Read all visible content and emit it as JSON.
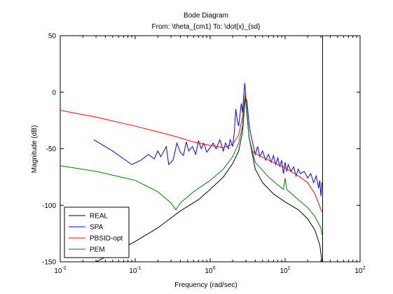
{
  "chart_data": {
    "type": "line",
    "title": "Bode Diagram",
    "subtitle": "From: \\theta_{cm1}  To: \\dot{x}_{sd}",
    "xlabel": "Frequency  (rad/sec)",
    "ylabel": "Magnitude (dB)",
    "xscale": "log",
    "xlim": [
      0.01,
      100
    ],
    "ylim": [
      -150,
      50
    ],
    "x_ticks": [
      {
        "base": "10",
        "exp": "-2",
        "value": 0.01
      },
      {
        "base": "10",
        "exp": "-1",
        "value": 0.1
      },
      {
        "base": "10",
        "exp": "0",
        "value": 1
      },
      {
        "base": "10",
        "exp": "1",
        "value": 10
      },
      {
        "base": "10",
        "exp": "2",
        "value": 100
      }
    ],
    "y_ticks": [
      "50",
      "0",
      "-50",
      "-100",
      "-150"
    ],
    "y_tick_values": [
      50,
      0,
      -50,
      -100,
      -150
    ],
    "legend_position": "bottom-left",
    "vertical_line_x": 31.6,
    "series": [
      {
        "name": "REAL",
        "color": "#000000",
        "points": [
          [
            0.01,
            -159
          ],
          [
            0.03,
            -150
          ],
          [
            0.1,
            -132
          ],
          [
            0.2,
            -120
          ],
          [
            0.4,
            -105
          ],
          [
            0.7,
            -95
          ],
          [
            1,
            -86
          ],
          [
            1.5,
            -75
          ],
          [
            2,
            -63
          ],
          [
            2.4,
            -52
          ],
          [
            2.7,
            -35
          ],
          [
            2.85,
            -15
          ],
          [
            2.95,
            -4
          ],
          [
            3.05,
            -15
          ],
          [
            3.3,
            -40
          ],
          [
            4,
            -68
          ],
          [
            5,
            -80
          ],
          [
            7,
            -90
          ],
          [
            10,
            -97
          ],
          [
            15,
            -104
          ],
          [
            20,
            -112
          ],
          [
            25,
            -122
          ],
          [
            29,
            -135
          ],
          [
            31,
            -150
          ]
        ]
      },
      {
        "name": "SPA",
        "color": "#0000ff",
        "points": [
          [
            0.028,
            -42
          ],
          [
            0.05,
            -52
          ],
          [
            0.09,
            -64
          ],
          [
            0.12,
            -60
          ],
          [
            0.15,
            -55
          ],
          [
            0.18,
            -59
          ],
          [
            0.2,
            -52
          ],
          [
            0.22,
            -57
          ],
          [
            0.26,
            -48
          ],
          [
            0.28,
            -64
          ],
          [
            0.32,
            -60
          ],
          [
            0.36,
            -45
          ],
          [
            0.4,
            -53
          ],
          [
            0.44,
            -56
          ],
          [
            0.48,
            -44
          ],
          [
            0.52,
            -52
          ],
          [
            0.58,
            -48
          ],
          [
            0.64,
            -55
          ],
          [
            0.7,
            -43
          ],
          [
            0.76,
            -50
          ],
          [
            0.82,
            -45
          ],
          [
            0.9,
            -53
          ],
          [
            1,
            -49
          ],
          [
            1.1,
            -45
          ],
          [
            1.2,
            -50
          ],
          [
            1.35,
            -42
          ],
          [
            1.5,
            -52
          ],
          [
            1.6,
            -45
          ],
          [
            1.75,
            -50
          ],
          [
            1.85,
            -42
          ],
          [
            2,
            -48
          ],
          [
            2.1,
            -35
          ],
          [
            2.2,
            -15
          ],
          [
            2.3,
            -25
          ],
          [
            2.4,
            -30
          ],
          [
            2.5,
            -20
          ],
          [
            2.6,
            -10
          ],
          [
            2.7,
            -18
          ],
          [
            2.8,
            -3
          ],
          [
            2.9,
            8
          ],
          [
            3,
            -5
          ],
          [
            3.1,
            -8
          ],
          [
            3.3,
            -28
          ],
          [
            3.5,
            -38
          ],
          [
            3.7,
            -45
          ],
          [
            4,
            -55
          ],
          [
            4.3,
            -48
          ],
          [
            4.6,
            -57
          ],
          [
            5,
            -52
          ],
          [
            5.5,
            -60
          ],
          [
            6,
            -55
          ],
          [
            6.5,
            -62
          ],
          [
            7,
            -56
          ],
          [
            7.5,
            -64
          ],
          [
            8,
            -58
          ],
          [
            8.5,
            -66
          ],
          [
            9,
            -60
          ],
          [
            9.5,
            -72
          ],
          [
            10,
            -62
          ],
          [
            10.5,
            -70
          ],
          [
            11,
            -64
          ],
          [
            12,
            -70
          ],
          [
            13,
            -66
          ],
          [
            14,
            -74
          ],
          [
            15,
            -68
          ],
          [
            16,
            -72
          ],
          [
            18,
            -70
          ],
          [
            20,
            -76
          ],
          [
            22,
            -72
          ],
          [
            24,
            -80
          ],
          [
            26,
            -74
          ],
          [
            28,
            -85
          ],
          [
            29,
            -78
          ],
          [
            30,
            -92
          ],
          [
            31,
            -80
          ]
        ]
      },
      {
        "name": "PBSID-opt",
        "color": "#ff0000",
        "points": [
          [
            0.01,
            -16
          ],
          [
            0.03,
            -22
          ],
          [
            0.1,
            -30
          ],
          [
            0.3,
            -38
          ],
          [
            0.6,
            -44
          ],
          [
            1,
            -47
          ],
          [
            1.5,
            -49
          ],
          [
            2,
            -46
          ],
          [
            2.4,
            -38
          ],
          [
            2.7,
            -22
          ],
          [
            2.85,
            -8
          ],
          [
            2.95,
            0
          ],
          [
            3.05,
            -12
          ],
          [
            3.3,
            -40
          ],
          [
            3.6,
            -52
          ],
          [
            4.5,
            -56
          ],
          [
            6,
            -60
          ],
          [
            8,
            -64
          ],
          [
            10,
            -67
          ],
          [
            15,
            -74
          ],
          [
            20,
            -80
          ],
          [
            25,
            -90
          ],
          [
            31,
            -106
          ]
        ]
      },
      {
        "name": "PEM",
        "color": "#008000",
        "points": [
          [
            0.01,
            -65
          ],
          [
            0.03,
            -70
          ],
          [
            0.1,
            -78
          ],
          [
            0.2,
            -88
          ],
          [
            0.3,
            -98
          ],
          [
            0.35,
            -104
          ],
          [
            0.4,
            -98
          ],
          [
            0.6,
            -88
          ],
          [
            1,
            -78
          ],
          [
            1.5,
            -68
          ],
          [
            2,
            -57
          ],
          [
            2.4,
            -45
          ],
          [
            2.7,
            -30
          ],
          [
            2.85,
            -12
          ],
          [
            2.95,
            -3
          ],
          [
            3.05,
            -14
          ],
          [
            3.3,
            -40
          ],
          [
            4,
            -62
          ],
          [
            6,
            -75
          ],
          [
            8,
            -82
          ],
          [
            9.5,
            -86
          ],
          [
            10,
            -76
          ],
          [
            10.5,
            -86
          ],
          [
            15,
            -95
          ],
          [
            20,
            -102
          ],
          [
            25,
            -110
          ],
          [
            30,
            -120
          ],
          [
            31,
            -126
          ]
        ]
      }
    ]
  }
}
